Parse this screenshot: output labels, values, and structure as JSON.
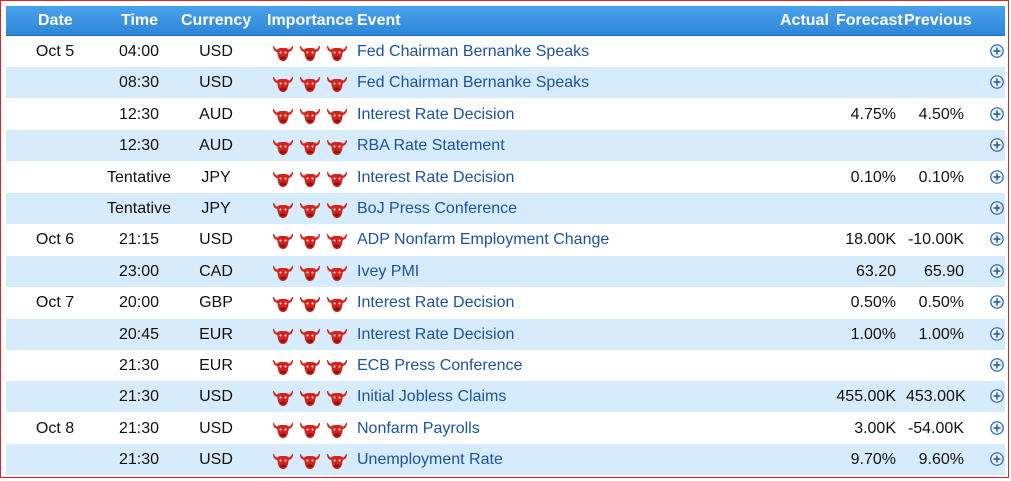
{
  "header": {
    "date": "Date",
    "time": "Time",
    "currency": "Currency",
    "importance": "Importance",
    "event": "Event",
    "actual": "Actual",
    "forecast": "Forecast",
    "previous": "Previous"
  },
  "colors": {
    "header_bg": "#3a95e2",
    "row_alt": "#d6ebfb",
    "event_link": "#1a53a3",
    "bull": "#d4231c",
    "frame_border": "#e0202a"
  },
  "icons": {
    "importance": "bull-icon",
    "expand": "plus-circle-icon"
  },
  "rows": [
    {
      "date": "Oct 5",
      "time": "04:00",
      "currency": "USD",
      "event": "Fed Chairman Bernanke Speaks",
      "actual": "",
      "forecast": "",
      "previous": ""
    },
    {
      "date": "",
      "time": "08:30",
      "currency": "USD",
      "event": "Fed Chairman Bernanke Speaks",
      "actual": "",
      "forecast": "",
      "previous": ""
    },
    {
      "date": "",
      "time": "12:30",
      "currency": "AUD",
      "event": "Interest Rate Decision",
      "actual": "4.75%",
      "forecast": "",
      "previous": "4.50%"
    },
    {
      "date": "",
      "time": "12:30",
      "currency": "AUD",
      "event": "RBA Rate Statement",
      "actual": "",
      "forecast": "",
      "previous": ""
    },
    {
      "date": "",
      "time": "Tentative",
      "currency": "JPY",
      "event": "Interest Rate Decision",
      "actual": "0.10%",
      "forecast": "",
      "previous": "0.10%"
    },
    {
      "date": "",
      "time": "Tentative",
      "currency": "JPY",
      "event": "BoJ Press Conference",
      "actual": "",
      "forecast": "",
      "previous": ""
    },
    {
      "date": "Oct 6",
      "time": "21:15",
      "currency": "USD",
      "event": "ADP Nonfarm Employment Change",
      "actual": "18.00K",
      "forecast": "",
      "previous": "-10.00K"
    },
    {
      "date": "",
      "time": "23:00",
      "currency": "CAD",
      "event": "Ivey PMI",
      "actual": "63.20",
      "forecast": "",
      "previous": "65.90"
    },
    {
      "date": "Oct 7",
      "time": "20:00",
      "currency": "GBP",
      "event": "Interest Rate Decision",
      "actual": "0.50%",
      "forecast": "",
      "previous": "0.50%"
    },
    {
      "date": "",
      "time": "20:45",
      "currency": "EUR",
      "event": "Interest Rate Decision",
      "actual": "1.00%",
      "forecast": "",
      "previous": "1.00%"
    },
    {
      "date": "",
      "time": "21:30",
      "currency": "EUR",
      "event": "ECB Press Conference",
      "actual": "",
      "forecast": "",
      "previous": ""
    },
    {
      "date": "",
      "time": "21:30",
      "currency": "USD",
      "event": "Initial Jobless Claims",
      "actual": "455.00K",
      "forecast": "",
      "previous": "453.00K"
    },
    {
      "date": "Oct 8",
      "time": "21:30",
      "currency": "USD",
      "event": "Nonfarm Payrolls",
      "actual": "3.00K",
      "forecast": "",
      "previous": "-54.00K"
    },
    {
      "date": "",
      "time": "21:30",
      "currency": "USD",
      "event": "Unemployment Rate",
      "actual": "9.70%",
      "forecast": "",
      "previous": "9.60%"
    }
  ]
}
